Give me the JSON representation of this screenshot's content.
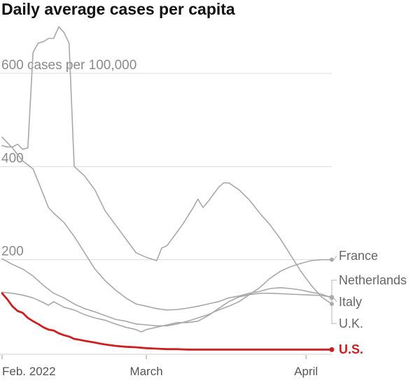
{
  "title": "Daily average cases per capita",
  "chart_data": {
    "type": "line",
    "title": "Daily average cases per capita",
    "xlabel": "",
    "ylabel": "",
    "y_ticks": [
      {
        "value": 200,
        "label": "200"
      },
      {
        "value": 400,
        "label": "400"
      },
      {
        "value": 600,
        "label": "600 cases per 100,000"
      }
    ],
    "x_ticks": [
      {
        "value": 0,
        "label": "Feb. 2022"
      },
      {
        "value": 28,
        "label": "March"
      },
      {
        "value": 59,
        "label": "April"
      }
    ],
    "xlim": [
      0,
      64
    ],
    "ylim": [
      0,
      600
    ],
    "grid": true,
    "series": [
      {
        "name": "Netherlands",
        "color": "#a8a8a8",
        "end_marker": true,
        "points": [
          [
            0,
            445
          ],
          [
            1,
            442
          ],
          [
            2,
            442
          ],
          [
            3,
            448
          ],
          [
            4,
            437
          ],
          [
            5,
            440
          ],
          [
            6,
            645
          ],
          [
            7,
            665
          ],
          [
            8,
            668
          ],
          [
            9,
            675
          ],
          [
            10,
            675
          ],
          [
            11,
            700
          ],
          [
            12,
            688
          ],
          [
            13,
            665
          ],
          [
            14,
            400
          ],
          [
            16,
            380
          ],
          [
            18,
            350
          ],
          [
            20,
            305
          ],
          [
            22,
            275
          ],
          [
            24,
            245
          ],
          [
            26,
            215
          ],
          [
            28,
            205
          ],
          [
            30,
            198
          ],
          [
            31,
            225
          ],
          [
            32,
            230
          ],
          [
            33,
            245
          ],
          [
            35,
            275
          ],
          [
            37,
            310
          ],
          [
            38,
            330
          ],
          [
            39,
            312
          ],
          [
            40,
            325
          ],
          [
            42,
            355
          ],
          [
            43,
            365
          ],
          [
            44,
            365
          ],
          [
            46,
            350
          ],
          [
            48,
            328
          ],
          [
            50,
            300
          ],
          [
            52,
            275
          ],
          [
            54,
            245
          ],
          [
            56,
            210
          ],
          [
            58,
            175
          ],
          [
            60,
            145
          ],
          [
            62,
            120
          ],
          [
            64,
            105
          ]
        ]
      },
      {
        "name": "Italy",
        "color": "#a8a8a8",
        "end_marker": true,
        "points": [
          [
            0,
            463
          ],
          [
            2,
            440
          ],
          [
            4,
            412
          ],
          [
            6,
            395
          ],
          [
            8,
            340
          ],
          [
            9,
            312
          ],
          [
            10,
            300
          ],
          [
            12,
            280
          ],
          [
            14,
            250
          ],
          [
            16,
            215
          ],
          [
            18,
            180
          ],
          [
            20,
            155
          ],
          [
            22,
            135
          ],
          [
            24,
            118
          ],
          [
            26,
            105
          ],
          [
            28,
            100
          ],
          [
            30,
            95
          ],
          [
            32,
            92
          ],
          [
            34,
            93
          ],
          [
            36,
            96
          ],
          [
            38,
            100
          ],
          [
            40,
            105
          ],
          [
            42,
            110
          ],
          [
            44,
            118
          ],
          [
            46,
            122
          ],
          [
            48,
            128
          ],
          [
            50,
            132
          ],
          [
            52,
            138
          ],
          [
            54,
            140
          ],
          [
            56,
            138
          ],
          [
            58,
            135
          ],
          [
            60,
            130
          ],
          [
            62,
            126
          ],
          [
            64,
            118
          ]
        ]
      },
      {
        "name": "France",
        "color": "#a8a8a8",
        "end_marker": true,
        "points": [
          [
            0,
            202
          ],
          [
            2,
            190
          ],
          [
            4,
            180
          ],
          [
            6,
            165
          ],
          [
            8,
            145
          ],
          [
            10,
            128
          ],
          [
            12,
            118
          ],
          [
            14,
            105
          ],
          [
            16,
            95
          ],
          [
            18,
            88
          ],
          [
            20,
            80
          ],
          [
            22,
            72
          ],
          [
            24,
            68
          ],
          [
            26,
            62
          ],
          [
            28,
            60
          ],
          [
            30,
            58
          ],
          [
            32,
            58
          ],
          [
            34,
            62
          ],
          [
            36,
            68
          ],
          [
            38,
            75
          ],
          [
            40,
            82
          ],
          [
            42,
            92
          ],
          [
            44,
            100
          ],
          [
            46,
            110
          ],
          [
            48,
            125
          ],
          [
            50,
            140
          ],
          [
            52,
            160
          ],
          [
            54,
            175
          ],
          [
            56,
            185
          ],
          [
            58,
            192
          ],
          [
            60,
            198
          ],
          [
            62,
            200
          ],
          [
            64,
            200
          ]
        ]
      },
      {
        "name": "U.K.",
        "color": "#a8a8a8",
        "end_marker": true,
        "points": [
          [
            0,
            130
          ],
          [
            2,
            128
          ],
          [
            4,
            124
          ],
          [
            6,
            118
          ],
          [
            8,
            108
          ],
          [
            9,
            102
          ],
          [
            10,
            110
          ],
          [
            12,
            98
          ],
          [
            14,
            92
          ],
          [
            16,
            82
          ],
          [
            18,
            75
          ],
          [
            20,
            70
          ],
          [
            22,
            62
          ],
          [
            24,
            55
          ],
          [
            26,
            50
          ],
          [
            27,
            45
          ],
          [
            28,
            50
          ],
          [
            30,
            55
          ],
          [
            32,
            60
          ],
          [
            34,
            65
          ],
          [
            36,
            65
          ],
          [
            38,
            68
          ],
          [
            40,
            80
          ],
          [
            42,
            95
          ],
          [
            44,
            110
          ],
          [
            46,
            120
          ],
          [
            48,
            125
          ],
          [
            50,
            128
          ],
          [
            52,
            128
          ],
          [
            54,
            127
          ],
          [
            56,
            126
          ],
          [
            58,
            125
          ],
          [
            60,
            124
          ],
          [
            62,
            123
          ],
          [
            64,
            120
          ]
        ]
      },
      {
        "name": "U.S.",
        "color": "#cc1f1f",
        "end_marker": true,
        "highlight": true,
        "points": [
          [
            0,
            128
          ],
          [
            1,
            115
          ],
          [
            2,
            100
          ],
          [
            3,
            90
          ],
          [
            4,
            86
          ],
          [
            5,
            75
          ],
          [
            6,
            68
          ],
          [
            7,
            62
          ],
          [
            8,
            55
          ],
          [
            9,
            50
          ],
          [
            10,
            48
          ],
          [
            11,
            42
          ],
          [
            12,
            38
          ],
          [
            13,
            35
          ],
          [
            14,
            30
          ],
          [
            15,
            28
          ],
          [
            16,
            26
          ],
          [
            17,
            24
          ],
          [
            18,
            22
          ],
          [
            19,
            20
          ],
          [
            20,
            18
          ],
          [
            22,
            15
          ],
          [
            24,
            13
          ],
          [
            26,
            12
          ],
          [
            28,
            10
          ],
          [
            30,
            9
          ],
          [
            32,
            8
          ],
          [
            34,
            8
          ],
          [
            36,
            7
          ],
          [
            38,
            7
          ],
          [
            40,
            7
          ],
          [
            42,
            7
          ],
          [
            44,
            7
          ],
          [
            46,
            7
          ],
          [
            48,
            7
          ],
          [
            50,
            7
          ],
          [
            52,
            7
          ],
          [
            54,
            7
          ],
          [
            56,
            7
          ],
          [
            58,
            7
          ],
          [
            60,
            7
          ],
          [
            62,
            7
          ],
          [
            64,
            7
          ]
        ]
      }
    ],
    "end_labels": [
      {
        "series": "France",
        "text": "France"
      },
      {
        "series": "Netherlands",
        "text": "Netherlands"
      },
      {
        "series": "Italy",
        "text": "Italy"
      },
      {
        "series": "U.K.",
        "text": "U.K."
      },
      {
        "series": "U.S.",
        "text": "U.S."
      }
    ]
  }
}
